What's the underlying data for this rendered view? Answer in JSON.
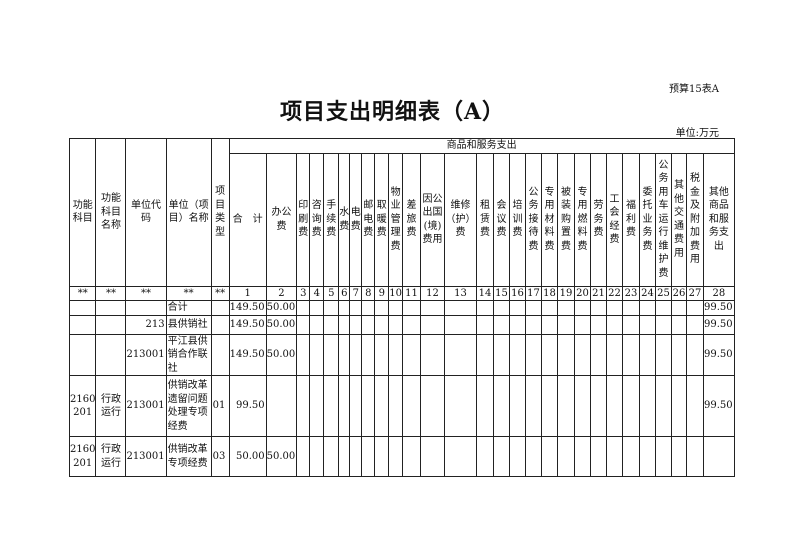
{
  "form_number": "预算15表A",
  "title": "项目支出明细表（A）",
  "unit": "单位:万元",
  "group_header": "商品和服务支出",
  "fixed_headers": [
    "功能\n科目",
    "功能\n科目\n名称",
    "单位代\n码",
    "单位（项\n目）名称",
    "项\n目\n类\n型"
  ],
  "expense_headers": [
    "合　计",
    "办公\n费",
    "印\n刷\n费",
    "咨\n询\n费",
    "手\n续\n费",
    "水\n费",
    "电\n费",
    "邮\n电\n费",
    "取\n暖\n费",
    "物\n业\n管\n理\n费",
    "差\n旅\n费",
    "因公\n出国\n(境)\n费用",
    "维修\n（护）\n费",
    "租\n赁\n费",
    "会\n议\n费",
    "培\n训\n费",
    "公\n务\n接\n待\n费",
    "专\n用\n材\n料\n费",
    "被\n装\n购\n置\n费",
    "专\n用\n燃\n料\n费",
    "劳\n务\n费",
    "工\n会\n经\n费",
    "福\n利\n费",
    "委\n托\n业\n务\n费",
    "公\n务\n用\n车\n运\n行\n维\n护\n费",
    "其\n他\n交\n通\n费\n用",
    "税\n金\n及\n附\n加\n费\n用",
    "其他\n商品\n和服\n务支\n出"
  ],
  "column_numbers": [
    "**",
    "**",
    "**",
    "**",
    "**",
    "1",
    "2",
    "3",
    "4",
    "5",
    "6",
    "7",
    "8",
    "9",
    "10",
    "11",
    "12",
    "13",
    "14",
    "15",
    "16",
    "17",
    "18",
    "19",
    "20",
    "21",
    "22",
    "23",
    "24",
    "25",
    "26",
    "27",
    "28"
  ],
  "rows": [
    {
      "func_code": "",
      "func_name": "",
      "unit_code": "",
      "unit_name": "合计",
      "type": "",
      "total": "149.50",
      "office": "50.00",
      "other_goods_services": "99.50"
    },
    {
      "func_code": "",
      "func_name": "",
      "unit_code": "213",
      "unit_name": "县供销社",
      "type": "",
      "total": "149.50",
      "office": "50.00",
      "other_goods_services": "99.50"
    },
    {
      "func_code": "",
      "func_name": "",
      "unit_code": "213001",
      "unit_name": "平江县供\n销合作联\n社",
      "type": "",
      "total": "149.50",
      "office": "50.00",
      "other_goods_services": "99.50"
    },
    {
      "func_code": "2160\n201",
      "func_name": "行政\n运行",
      "unit_code": "213001",
      "unit_name": "供销改革\n遗留问题\n处理专项\n经费",
      "type": "01",
      "total": "99.50",
      "office": "",
      "other_goods_services": "99.50"
    },
    {
      "func_code": "2160\n201",
      "func_name": "行政\n运行",
      "unit_code": "213001",
      "unit_name": "供销改革\n专项经费",
      "type": "03",
      "total": "50.00",
      "office": "50.00",
      "other_goods_services": ""
    }
  ]
}
